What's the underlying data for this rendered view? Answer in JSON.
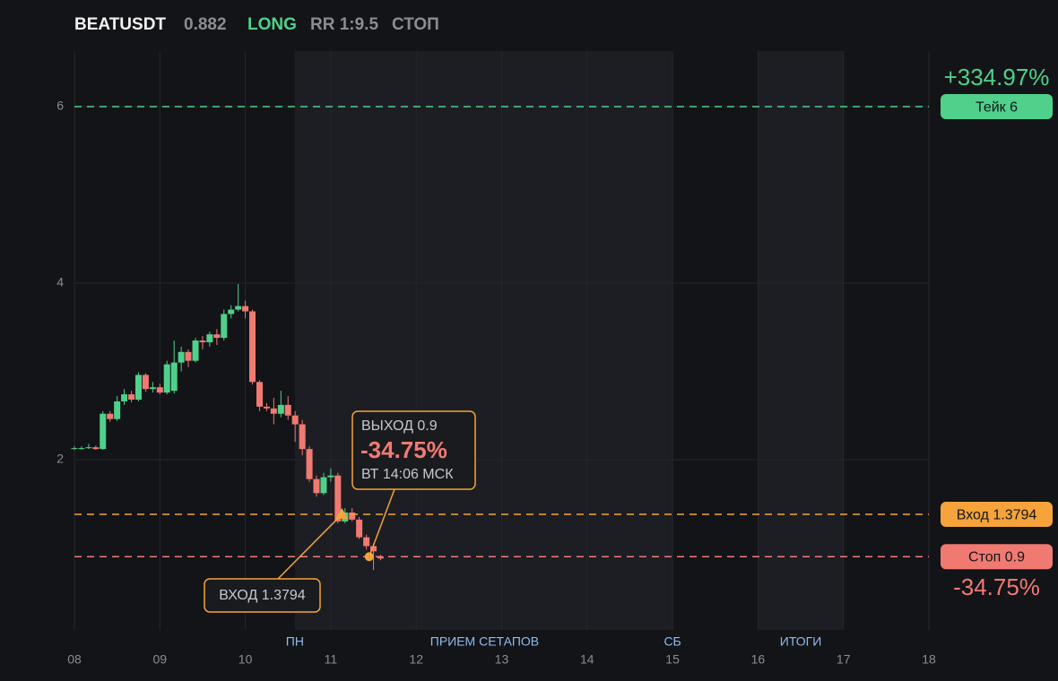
{
  "header": {
    "symbol": "BEATUSDT",
    "price": 0.882,
    "side": "LONG",
    "rr": "RR 1:9.5",
    "status": "СТОП"
  },
  "chart_data": {
    "type": "candlestick",
    "x": [
      8.0,
      8.083,
      8.167,
      8.25,
      8.333,
      8.417,
      8.5,
      8.583,
      8.667,
      8.75,
      8.833,
      8.917,
      9.0,
      9.083,
      9.167,
      9.25,
      9.333,
      9.417,
      9.5,
      9.583,
      9.667,
      9.75,
      9.833,
      9.917,
      10.0,
      10.083,
      10.167,
      10.25,
      10.333,
      10.417,
      10.5,
      10.583,
      10.667,
      10.75,
      10.833,
      10.917,
      11.0,
      11.083,
      11.167,
      11.25,
      11.333,
      11.417,
      11.5,
      11.583
    ],
    "open": [
      2.12,
      2.13,
      2.13,
      2.14,
      2.12,
      2.52,
      2.46,
      2.66,
      2.74,
      2.68,
      2.96,
      2.8,
      2.82,
      2.76,
      2.78,
      3.1,
      3.22,
      3.12,
      3.35,
      3.33,
      3.42,
      3.38,
      3.65,
      3.7,
      3.74,
      3.68,
      2.88,
      2.6,
      2.58,
      2.52,
      2.62,
      2.5,
      2.4,
      2.12,
      1.78,
      1.62,
      1.8,
      1.82,
      1.3,
      1.4,
      1.32,
      1.12,
      1.02,
      0.9
    ],
    "high": [
      2.15,
      2.15,
      2.18,
      2.16,
      2.55,
      2.55,
      2.72,
      2.8,
      2.78,
      2.99,
      2.98,
      2.88,
      2.86,
      3.12,
      3.35,
      3.28,
      3.25,
      3.38,
      3.4,
      3.45,
      3.48,
      3.7,
      3.75,
      3.99,
      3.8,
      3.7,
      2.9,
      2.64,
      2.7,
      2.78,
      2.72,
      2.55,
      2.45,
      2.15,
      1.82,
      1.85,
      1.9,
      1.85,
      1.45,
      1.45,
      1.35,
      1.15,
      1.05,
      0.92
    ],
    "low": [
      2.11,
      2.11,
      2.12,
      2.11,
      2.11,
      2.43,
      2.44,
      2.62,
      2.65,
      2.66,
      2.77,
      2.76,
      2.74,
      2.74,
      2.75,
      3.0,
      3.05,
      3.1,
      3.25,
      3.28,
      3.3,
      3.35,
      3.6,
      3.68,
      3.6,
      2.85,
      2.55,
      2.55,
      2.4,
      2.48,
      2.45,
      2.2,
      2.05,
      1.75,
      1.58,
      1.6,
      1.75,
      1.28,
      1.28,
      1.3,
      1.1,
      0.98,
      0.75,
      0.86
    ],
    "close": [
      2.13,
      2.13,
      2.14,
      2.12,
      2.52,
      2.46,
      2.66,
      2.74,
      2.68,
      2.96,
      2.8,
      2.82,
      2.76,
      3.08,
      3.1,
      3.22,
      3.12,
      3.35,
      3.33,
      3.42,
      3.38,
      3.65,
      3.7,
      3.74,
      3.68,
      2.88,
      2.6,
      2.58,
      2.52,
      2.62,
      2.5,
      2.4,
      2.12,
      1.78,
      1.62,
      1.8,
      1.82,
      1.3,
      1.4,
      1.32,
      1.12,
      1.02,
      0.96,
      0.88
    ],
    "up_color": "#4fd18b",
    "down_color": "#f07a72",
    "xlim": [
      8,
      18
    ],
    "ylim": [
      0.07,
      6.63
    ],
    "xticks": [
      {
        "value": 8,
        "label": "08"
      },
      {
        "value": 9,
        "label": "09"
      },
      10,
      11,
      12,
      13,
      14,
      15,
      16,
      17,
      18
    ],
    "yticks": [
      2,
      4,
      6
    ],
    "grid": true,
    "shaded_ranges": [
      [
        10.58,
        15
      ],
      [
        16,
        17
      ]
    ],
    "session_labels": [
      {
        "label": "ПН",
        "x": 10.58
      },
      {
        "label": "ПРИЕМ СЕТАПОВ",
        "x": 12.8
      },
      {
        "label": "СБ",
        "x": 15
      },
      {
        "label": "ИТОГИ",
        "x": 16.5
      }
    ],
    "levels": [
      {
        "name": "Тейк 6",
        "value": 6,
        "color": "#4fd18b",
        "pnl": "+334.97%"
      },
      {
        "name": "Вход 1.3794",
        "value": 1.3794,
        "color": "#f5a33a"
      },
      {
        "name": "Стоп 0.9",
        "value": 0.9,
        "color": "#f07a72",
        "pnl": "-34.75%"
      }
    ],
    "entry": {
      "label": "ВХОД 1.3794",
      "x": 11.13,
      "y": 1.3794
    },
    "exit": {
      "label": "ВЫХОД 0.9",
      "pnl": "-34.75%",
      "time": "ВТ 14:06 МСК",
      "x": 11.45,
      "y": 0.9
    }
  }
}
